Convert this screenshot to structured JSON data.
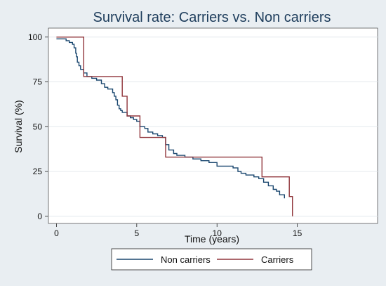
{
  "chart_data": {
    "type": "line",
    "step": true,
    "title": "Survival rate: Carriers vs. Non carriers",
    "xlabel": "Time (years)",
    "ylabel": "Survival (%)",
    "xlim": [
      -0.5,
      20
    ],
    "ylim": [
      -4,
      105
    ],
    "x_ticks": [
      0,
      5,
      10,
      15
    ],
    "y_ticks": [
      0,
      25,
      50,
      75,
      100
    ],
    "grid": "horizontal",
    "legend_position": "bottom",
    "series": [
      {
        "name": "Non carriers",
        "color": "#1a476f",
        "points": [
          [
            0,
            99
          ],
          [
            0.6,
            98
          ],
          [
            0.8,
            97
          ],
          [
            1.0,
            96
          ],
          [
            1.1,
            94
          ],
          [
            1.2,
            91
          ],
          [
            1.25,
            89
          ],
          [
            1.3,
            86
          ],
          [
            1.4,
            84
          ],
          [
            1.5,
            82
          ],
          [
            1.7,
            80
          ],
          [
            1.9,
            78
          ],
          [
            2.2,
            77
          ],
          [
            2.5,
            76
          ],
          [
            2.8,
            74
          ],
          [
            3.0,
            72
          ],
          [
            3.2,
            71
          ],
          [
            3.5,
            69
          ],
          [
            3.6,
            67
          ],
          [
            3.7,
            65
          ],
          [
            3.8,
            62
          ],
          [
            3.9,
            60
          ],
          [
            4.0,
            59
          ],
          [
            4.1,
            58
          ],
          [
            4.4,
            56
          ],
          [
            4.6,
            55
          ],
          [
            4.8,
            54
          ],
          [
            5.0,
            53
          ],
          [
            5.2,
            50
          ],
          [
            5.5,
            49
          ],
          [
            5.7,
            47
          ],
          [
            6.0,
            46
          ],
          [
            6.3,
            45
          ],
          [
            6.6,
            44
          ],
          [
            6.8,
            40
          ],
          [
            7.0,
            37
          ],
          [
            7.3,
            35
          ],
          [
            7.5,
            34
          ],
          [
            8.0,
            33
          ],
          [
            8.5,
            32
          ],
          [
            9.0,
            31
          ],
          [
            9.5,
            30
          ],
          [
            10.0,
            28
          ],
          [
            11.0,
            27
          ],
          [
            11.3,
            25
          ],
          [
            11.5,
            24
          ],
          [
            11.8,
            23
          ],
          [
            12.3,
            22
          ],
          [
            12.6,
            21
          ],
          [
            12.9,
            19
          ],
          [
            13.2,
            17
          ],
          [
            13.5,
            15
          ],
          [
            13.7,
            14
          ],
          [
            13.9,
            12
          ],
          [
            14.2,
            11
          ],
          [
            14.2,
            10
          ]
        ]
      },
      {
        "name": "Carriers",
        "color": "#90353b",
        "points": [
          [
            0,
            100
          ],
          [
            1.7,
            100
          ],
          [
            1.7,
            78
          ],
          [
            4.1,
            78
          ],
          [
            4.1,
            67
          ],
          [
            4.4,
            67
          ],
          [
            4.4,
            56
          ],
          [
            5.2,
            56
          ],
          [
            5.2,
            44
          ],
          [
            6.8,
            44
          ],
          [
            6.8,
            33
          ],
          [
            12.8,
            33
          ],
          [
            12.8,
            22
          ],
          [
            14.5,
            22
          ],
          [
            14.5,
            11
          ],
          [
            14.7,
            11
          ],
          [
            14.7,
            0
          ]
        ]
      }
    ]
  }
}
